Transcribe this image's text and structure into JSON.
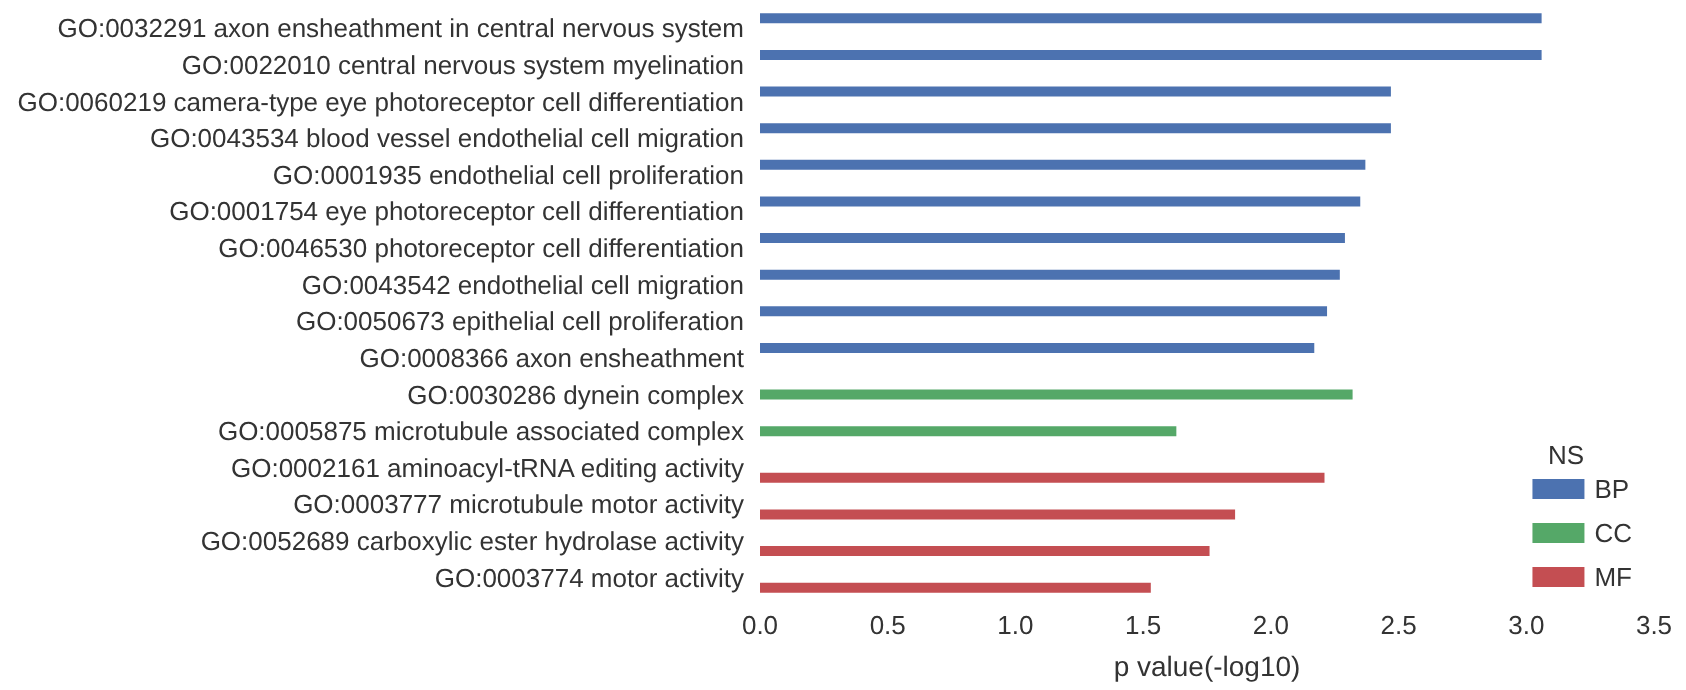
{
  "chart_data": {
    "type": "bar",
    "orientation": "horizontal",
    "xlabel": "p value(-log10)",
    "legend_title": "NS",
    "legend": "bottom right",
    "grid": false,
    "categories": [
      "GO:0032291 axon ensheathment in central nervous system",
      "GO:0022010 central nervous system myelination",
      "GO:0060219 camera-type eye photoreceptor cell differentiation",
      "GO:0043534 blood vessel endothelial cell migration",
      "GO:0001935 endothelial cell proliferation",
      "GO:0001754 eye photoreceptor cell differentiation",
      "GO:0046530 photoreceptor cell differentiation",
      "GO:0043542 endothelial cell migration",
      "GO:0050673 epithelial cell proliferation",
      "GO:0008366 axon ensheathment",
      "GO:0030286 dynein complex",
      "GO:0005875 microtubule associated complex",
      "GO:0002161 aminoacyl-tRNA editing activity",
      "GO:0003777 microtubule motor activity",
      "GO:0052689 carboxylic ester hydrolase activity",
      "GO:0003774 motor activity"
    ],
    "series": [
      {
        "name": "BP",
        "color": "#4c72b0",
        "values": [
          3.06,
          3.06,
          2.47,
          2.47,
          2.37,
          2.35,
          2.29,
          2.27,
          2.22,
          2.17,
          null,
          null,
          null,
          null,
          null,
          null
        ]
      },
      {
        "name": "CC",
        "color": "#55a868",
        "values": [
          null,
          null,
          null,
          null,
          null,
          null,
          null,
          null,
          null,
          null,
          2.32,
          1.63,
          null,
          null,
          null,
          null
        ]
      },
      {
        "name": "MF",
        "color": "#c44e52",
        "values": [
          null,
          null,
          null,
          null,
          null,
          null,
          null,
          null,
          null,
          null,
          null,
          null,
          2.21,
          1.86,
          1.76,
          1.53
        ]
      }
    ],
    "xlim": [
      0,
      3.5
    ],
    "xticks": [
      {
        "value": 0,
        "label": "0.0"
      },
      0.5,
      {
        "value": 1,
        "label": "1.0"
      },
      1.5,
      {
        "value": 2,
        "label": "2.0"
      },
      2.5,
      {
        "value": 3,
        "label": "3.0"
      },
      3.5
    ]
  }
}
